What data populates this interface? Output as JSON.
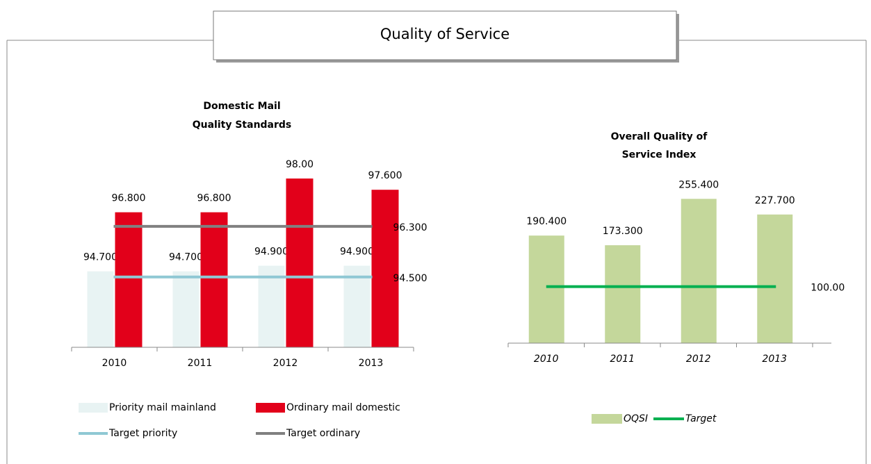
{
  "title": "Quality of Service",
  "chart_data": [
    {
      "type": "bar",
      "title": [
        "Domestic Mail",
        "Quality Standards"
      ],
      "categories": [
        "2010",
        "2011",
        "2012",
        "2013"
      ],
      "ylim": [
        92,
        99
      ],
      "series": [
        {
          "name": "Priority mail mainland",
          "color": "#e8f3f3",
          "values": [
            94.7,
            94.7,
            94.9,
            94.9
          ],
          "value_labels": [
            "94.700",
            "94.700",
            "94.900",
            "94.900"
          ]
        },
        {
          "name": "Ordinary mail domestic",
          "color": "#e2001a",
          "values": [
            96.8,
            96.8,
            98,
            97.6
          ],
          "value_labels": [
            "96.800",
            "96.800",
            "98.00",
            "97.600"
          ]
        }
      ],
      "targets": [
        {
          "name": "Target priority",
          "color": "#8fc8d4",
          "value": 94.5,
          "value_label": "94.500"
        },
        {
          "name": "Target ordinary",
          "color": "#808080",
          "value": 96.3,
          "value_label": "96.300"
        }
      ]
    },
    {
      "type": "bar",
      "title": [
        "Overall Quality of",
        "Service Index"
      ],
      "categories": [
        "2010",
        "2011",
        "2012",
        "2013"
      ],
      "ylim": [
        0,
        300
      ],
      "series": [
        {
          "name": "OQSI",
          "color": "#c4d79b",
          "values": [
            190.4,
            173.3,
            255.4,
            227.7
          ],
          "value_labels": [
            "190.400",
            "173.300",
            "255.400",
            "227.700"
          ]
        }
      ],
      "targets": [
        {
          "name": "Target",
          "color": "#00b050",
          "value": 100,
          "value_label": "100.00"
        }
      ]
    }
  ]
}
